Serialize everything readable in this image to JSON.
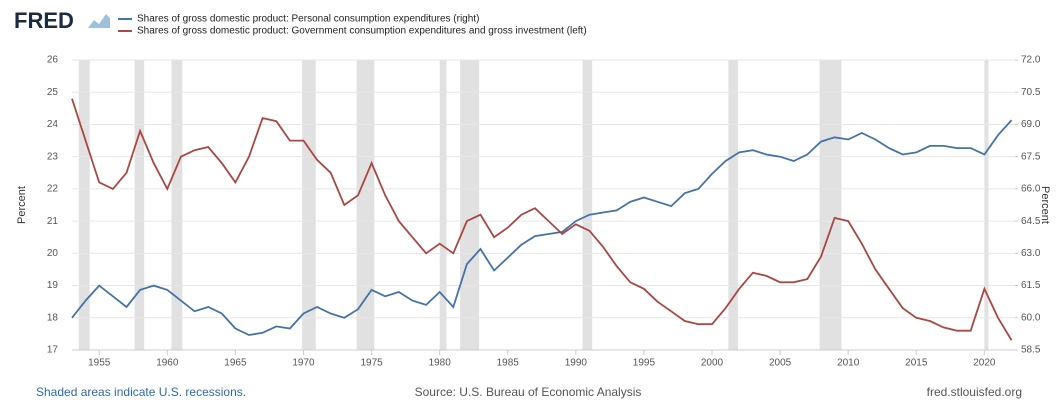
{
  "chart_data": {
    "type": "line",
    "logo": "FRED",
    "ylabel": "Percent",
    "y2label": "Percent",
    "note": "Shaded areas indicate U.S. recessions.",
    "source": "Source: U.S. Bureau of Economic Analysis",
    "site": "fred.stlouisfed.org",
    "x": [
      1953,
      1954,
      1955,
      1956,
      1957,
      1958,
      1959,
      1960,
      1961,
      1962,
      1963,
      1964,
      1965,
      1966,
      1967,
      1968,
      1969,
      1970,
      1971,
      1972,
      1973,
      1974,
      1975,
      1976,
      1977,
      1978,
      1979,
      1980,
      1981,
      1982,
      1983,
      1984,
      1985,
      1986,
      1987,
      1988,
      1989,
      1990,
      1991,
      1992,
      1993,
      1994,
      1995,
      1996,
      1997,
      1998,
      1999,
      2000,
      2001,
      2002,
      2003,
      2004,
      2005,
      2006,
      2007,
      2008,
      2009,
      2010,
      2011,
      2012,
      2013,
      2014,
      2015,
      2016,
      2017,
      2018,
      2019,
      2020,
      2021,
      2022
    ],
    "series": [
      {
        "name": "Shares of gross domestic product: Personal consumption expenditures (right)",
        "color": "#4572a7",
        "axis": "y2",
        "values": [
          60.0,
          60.8,
          61.5,
          61.0,
          60.5,
          61.3,
          61.5,
          61.3,
          60.8,
          60.3,
          60.5,
          60.2,
          59.5,
          59.2,
          59.3,
          59.6,
          59.5,
          60.2,
          60.5,
          60.2,
          60.0,
          60.4,
          61.3,
          61.0,
          61.2,
          60.8,
          60.6,
          61.2,
          60.5,
          62.5,
          63.2,
          62.2,
          62.8,
          63.4,
          63.8,
          63.9,
          64.0,
          64.5,
          64.8,
          64.9,
          65.0,
          65.4,
          65.6,
          65.4,
          65.2,
          65.8,
          66.0,
          66.7,
          67.3,
          67.7,
          67.8,
          67.6,
          67.5,
          67.3,
          67.6,
          68.2,
          68.4,
          68.3,
          68.6,
          68.3,
          67.9,
          67.6,
          67.7,
          68.0,
          68.0,
          67.9,
          67.9,
          67.6,
          68.5,
          69.2
        ]
      },
      {
        "name": "Shares of gross domestic product: Government consumption expenditures and gross investment (left)",
        "color": "#aa4643",
        "axis": "y",
        "values": [
          24.8,
          23.5,
          22.2,
          22.0,
          22.5,
          23.8,
          22.8,
          22.0,
          23.0,
          23.2,
          23.3,
          22.8,
          22.2,
          23.0,
          24.2,
          24.1,
          23.5,
          23.5,
          22.9,
          22.5,
          21.5,
          21.8,
          22.8,
          21.8,
          21.0,
          20.5,
          20.0,
          20.3,
          20.0,
          21.0,
          21.2,
          20.5,
          20.8,
          21.2,
          21.4,
          21.0,
          20.6,
          20.9,
          20.7,
          20.2,
          19.6,
          19.1,
          18.9,
          18.5,
          18.2,
          17.9,
          17.8,
          17.8,
          18.3,
          18.9,
          19.4,
          19.3,
          19.1,
          19.1,
          19.2,
          19.9,
          21.1,
          21.0,
          20.3,
          19.5,
          18.9,
          18.3,
          18.0,
          17.9,
          17.7,
          17.6,
          17.6,
          18.9,
          18.0,
          17.3
        ]
      }
    ],
    "recessions": [
      [
        1953.5,
        1954.3
      ],
      [
        1957.6,
        1958.3
      ],
      [
        1960.3,
        1961.1
      ],
      [
        1969.9,
        1970.9
      ],
      [
        1973.9,
        1975.2
      ],
      [
        1980.0,
        1980.5
      ],
      [
        1981.5,
        1982.9
      ],
      [
        1990.5,
        1991.2
      ],
      [
        2001.2,
        2001.9
      ],
      [
        2007.9,
        2009.5
      ],
      [
        2020.0,
        2020.3
      ]
    ],
    "recession_color": "#e1e1e1",
    "xlim": [
      1953,
      2022.25
    ],
    "xticks": [
      1955,
      1960,
      1965,
      1970,
      1975,
      1980,
      1985,
      1990,
      1995,
      2000,
      2005,
      2010,
      2015,
      2020
    ],
    "ylim": [
      17,
      26
    ],
    "yticks": [
      17,
      18,
      19,
      20,
      21,
      22,
      23,
      24,
      25,
      26
    ],
    "y2lim": [
      58.5,
      72
    ],
    "y2ticks": [
      {
        "value": 58.5,
        "label": "58.5"
      },
      {
        "value": 60,
        "label": "60.0"
      },
      {
        "value": 61.5,
        "label": "61.5"
      },
      {
        "value": 63,
        "label": "63.0"
      },
      {
        "value": 64.5,
        "label": "64.5"
      },
      {
        "value": 66,
        "label": "66.0"
      },
      {
        "value": 67.5,
        "label": "67.5"
      },
      {
        "value": 69,
        "label": "69.0"
      },
      {
        "value": 70.5,
        "label": "70.5"
      },
      {
        "value": 72,
        "label": "72.0"
      }
    ],
    "grid": true
  }
}
